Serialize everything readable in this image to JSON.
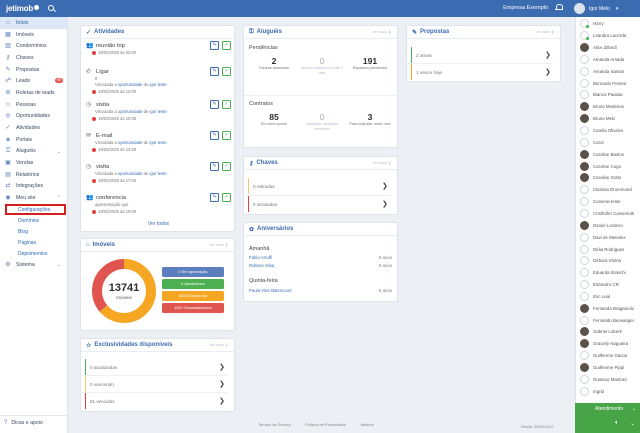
{
  "topbar": {
    "logo": "jetimob",
    "company": "Empresa Exemplo",
    "user_name": "Igor Melo"
  },
  "sidebar": {
    "items": [
      {
        "label": "Início",
        "icon": "home-icon",
        "glyph": "⌂"
      },
      {
        "label": "Imóveis",
        "icon": "building-icon",
        "glyph": "▦"
      },
      {
        "label": "Condomínios",
        "icon": "condo-icon",
        "glyph": "▥"
      },
      {
        "label": "Chaves",
        "icon": "key-icon",
        "glyph": "⚷"
      },
      {
        "label": "Propostas",
        "icon": "proposal-icon",
        "glyph": "✎"
      },
      {
        "label": "Leads",
        "icon": "leads-icon",
        "glyph": "☍",
        "badge": "99"
      },
      {
        "label": "Roletas de leads",
        "icon": "roulette-icon",
        "glyph": "⚙"
      },
      {
        "label": "Pessoas",
        "icon": "people-icon",
        "glyph": "☺"
      },
      {
        "label": "Oportunidades",
        "icon": "opportunity-icon",
        "glyph": "◎"
      },
      {
        "label": "Atividades",
        "icon": "activity-icon",
        "glyph": "✓"
      },
      {
        "label": "Portais",
        "icon": "portal-icon",
        "glyph": "◈"
      },
      {
        "label": "Aluguéis",
        "icon": "rent-icon",
        "glyph": "⚿"
      },
      {
        "label": "Vendas",
        "icon": "sales-icon",
        "glyph": "▣"
      },
      {
        "label": "Relatórios",
        "icon": "report-icon",
        "glyph": "▤"
      },
      {
        "label": "Integrações",
        "icon": "integration-icon",
        "glyph": "⇄"
      },
      {
        "label": "Meu site",
        "icon": "site-icon",
        "glyph": "◉"
      }
    ],
    "sub_items": [
      "Configurações",
      "Domínios",
      "Blog",
      "Páginas",
      "Depoimentos"
    ],
    "system": "Sistema",
    "footer": "Dicas e apoio"
  },
  "activities": {
    "title": "Atividades",
    "more": "Ver todos",
    "items": [
      {
        "title": "reunião top",
        "icon": "meeting-icon",
        "glyph": "👥",
        "date": "19/03/2025 às 02:00"
      },
      {
        "title": "Ligar",
        "icon": "phone-icon",
        "glyph": "✆",
        "count": "0",
        "prefix": "Vinculada a ",
        "link1": "oportunidade",
        "mid": " de ",
        "link2": "igor teste",
        "date": "19/03/2025 às 10:00"
      },
      {
        "title": "visita",
        "icon": "visit-icon",
        "glyph": "◷",
        "prefix": "Vinculada a ",
        "link1": "oportunidade",
        "mid": " de ",
        "link2": "igor teste",
        "date": "19/03/2025 às 10:00"
      },
      {
        "title": "E-mail",
        "icon": "email-icon",
        "glyph": "✉",
        "prefix": "Vinculada a ",
        "link1": "oportunidade",
        "mid": " de ",
        "link2": "igor teste",
        "date": "19/03/2025 às 14:00"
      },
      {
        "title": "visita",
        "icon": "visit-icon",
        "glyph": "◷",
        "prefix": "Vinculada a ",
        "link1": "oportunidade",
        "mid": " de ",
        "link2": "igor teste",
        "date": "19/03/2025 às 17:00"
      },
      {
        "title": "conferencia",
        "icon": "conference-icon",
        "glyph": "👥",
        "note": "apresentação igor",
        "date": "19/03/2025 às 19:00"
      }
    ]
  },
  "rentals": {
    "title": "Aluguéis",
    "view_all": "Ver todos",
    "pendencias_title": "Pendências",
    "pendencias": [
      {
        "num": "2",
        "label": "Faturas atrasadas",
        "muted": false
      },
      {
        "num": "0",
        "label": "Boletos expiram em até 7 dias",
        "muted": true
      },
      {
        "num": "191",
        "label": "Repasses pendentes",
        "muted": false
      }
    ],
    "contratos_title": "Contratos",
    "contratos": [
      {
        "num": "85",
        "label": "Em aviso prévio",
        "muted": false
      },
      {
        "num": "0",
        "label": "Garantias locatícias vencendo",
        "muted": true
      },
      {
        "num": "3",
        "label": "Para reajustar neste mês",
        "muted": false
      }
    ]
  },
  "proposals": {
    "title": "Propostas",
    "view_all": "Ver todos",
    "rows": [
      {
        "label": "2 ativas",
        "color": "#4caf50"
      },
      {
        "label": "1 vence hoje",
        "color": "#f5a623"
      }
    ]
  },
  "keys": {
    "title": "Chaves",
    "view_all": "Ver todos",
    "rows": [
      {
        "label": "0 retiradas",
        "color": "#f5c36b"
      },
      {
        "label": "5 atrasadas",
        "color": "#e0413d"
      }
    ]
  },
  "properties": {
    "title": "Imóveis",
    "view_all": "Ver todos",
    "total": "13741",
    "total_label": "Imóveis",
    "legend": [
      {
        "label": "0 Em aprovação",
        "color": "#5b7fbd",
        "value": 0
      },
      {
        "label": "0 Atualizados",
        "color": "#4caf50",
        "value": 0
      },
      {
        "label": "8630 Expirando",
        "color": "#f5a623",
        "value": 8630
      },
      {
        "label": "4921 Desatualizados",
        "color": "#e0554f",
        "value": 4921
      }
    ]
  },
  "exclusives": {
    "title": "Exclusividades disponíveis",
    "view_all": "Ver todos",
    "rows": [
      {
        "label": "0 atualizadas",
        "color": "#4caf50"
      },
      {
        "label": "0 vencendo",
        "color": "#f5c36b"
      },
      {
        "label": "51 vencidas",
        "color": "#e0413d"
      }
    ]
  },
  "birthdays": {
    "title": "Aniversários",
    "today": "Amanhã",
    "today_list": [
      {
        "name": "Fabio Arruffi",
        "age": "5 anos"
      },
      {
        "name": "Robson Silva",
        "age": "5 anos"
      }
    ],
    "next": "Quinta-feira",
    "next_list": [
      {
        "name": "Paula Vitor Bittencourt",
        "age": "5 anos"
      }
    ]
  },
  "people": [
    {
      "name": "Harry",
      "av": "light",
      "online": true
    },
    {
      "name": "Leandra Lacerda",
      "av": "light",
      "online": true
    },
    {
      "name": "Alice Zillardi",
      "av": "dark",
      "online": false
    },
    {
      "name": "Amanda Amada",
      "av": "light",
      "online": false
    },
    {
      "name": "Amanda Santos",
      "av": "light",
      "online": false
    },
    {
      "name": "Bernardo Pereira",
      "av": "light",
      "online": false
    },
    {
      "name": "Bianca Paulata",
      "av": "light",
      "online": false
    },
    {
      "name": "Bruno Medeiros",
      "av": "dark",
      "online": false
    },
    {
      "name": "Bruno Melo",
      "av": "dark",
      "online": false
    },
    {
      "name": "Camila Oliveira",
      "av": "light",
      "online": false
    },
    {
      "name": "Carol",
      "av": "light",
      "online": false
    },
    {
      "name": "Caroline Bastos",
      "av": "dark",
      "online": false
    },
    {
      "name": "Caroline Cogo",
      "av": "dark",
      "online": false
    },
    {
      "name": "Caroline Gotto",
      "av": "dark",
      "online": false
    },
    {
      "name": "Clarissa Drummond",
      "av": "light",
      "online": false
    },
    {
      "name": "Conselvi teste",
      "av": "light",
      "online": false
    },
    {
      "name": "Cristhófer Casseriotti",
      "av": "light",
      "online": false
    },
    {
      "name": "Daniel Londero",
      "av": "dark",
      "online": false
    },
    {
      "name": "Davi de Meireles",
      "av": "light",
      "online": false
    },
    {
      "name": "Délia Rodrigues",
      "av": "light",
      "online": false
    },
    {
      "name": "Débora Vitória",
      "av": "light",
      "online": false
    },
    {
      "name": "Eduarda Branchi",
      "av": "light",
      "online": false
    },
    {
      "name": "Elizandro CR",
      "av": "light",
      "online": false
    },
    {
      "name": "Eric Leal",
      "av": "light",
      "online": false
    },
    {
      "name": "Fernanda Bragamolo",
      "av": "dark",
      "online": false
    },
    {
      "name": "Fernando Berwanger",
      "av": "light",
      "online": false
    },
    {
      "name": "Gabriel Loberk",
      "av": "dark",
      "online": false
    },
    {
      "name": "Graciely Nogueira",
      "av": "dark",
      "online": false
    },
    {
      "name": "Guilherme Garcia",
      "av": "light",
      "online": false
    },
    {
      "name": "Guilherme Pippi",
      "av": "dark",
      "online": false
    },
    {
      "name": "Gustavo Martinez",
      "av": "light",
      "online": false
    },
    {
      "name": "Ingrid",
      "av": "light",
      "online": false
    }
  ],
  "attendance": {
    "label": "Atendimento"
  },
  "footer": {
    "links": [
      "Termos de Serviço",
      "Política de Privacidade",
      "Jetimob"
    ],
    "version": "Versão: 20250414-0"
  }
}
